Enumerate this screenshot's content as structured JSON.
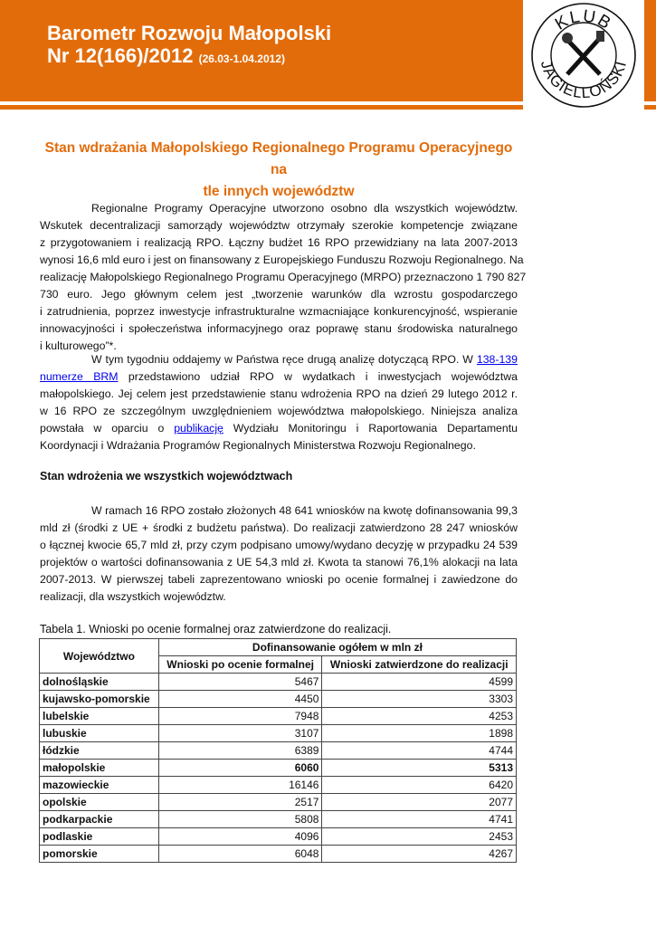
{
  "header": {
    "title_line1": "Barometr Rozwoju Małopolski",
    "title_line2": "Nr 12(166)/2012",
    "date_range": "(26.03-1.04.2012)",
    "logo_text": "KLUB JAGIELLOŃSKI",
    "brand_color": "#E36C0A"
  },
  "article": {
    "heading_line1": "Stan wdrażania Małopolskiego Regionalnego Programu Operacyjnego na",
    "heading_line2": "tle innych województw",
    "paragraphs": [
      [
        [
          {
            "t": "Regionalne Programy Operacyjne utworzono osobno dla wszystkich województw."
          }
        ],
        [
          {
            "t": "Wskutek decentralizacji samorządy województw otrzymały szerokie kompetencje związane"
          }
        ],
        [
          {
            "t": "z przygotowaniem i realizacją RPO. Łączny budżet 16 RPO przewidziany na lata 2007-2013"
          }
        ],
        [
          {
            "t": "wynosi 16,6 mld euro i jest on finansowany z Europejskiego Funduszu Rozwoju Regionalnego. Na"
          }
        ],
        [
          {
            "t": "realizację Małopolskiego Regionalnego Programu Operacyjnego (MRPO) przeznaczono 1 790 827"
          }
        ],
        [
          {
            "t": "730 euro. Jego głównym celem jest „tworzenie warunków dla wzrostu gospodarczego"
          }
        ],
        [
          {
            "t": "i zatrudnienia, poprzez inwestycje infrastrukturalne wzmacniające konkurencyjność, wspieranie"
          }
        ],
        [
          {
            "t": "innowacyjności i społeczeństwa informacyjnego oraz poprawę stanu środowiska naturalnego"
          }
        ],
        [
          {
            "t": "i kulturowego”*."
          }
        ]
      ],
      [
        [
          {
            "t": "W tym tygodniu oddajemy w Państwa ręce drugą analizę dotyczącą RPO. W "
          },
          {
            "t": "138-139",
            "link": true
          }
        ],
        [
          {
            "t": "numerze BRM",
            "link": true
          },
          {
            "t": " przedstawiono udział RPO w wydatkach i inwestycjach województwa"
          }
        ],
        [
          {
            "t": "małopolskiego. Jej celem jest przedstawienie stanu wdrożenia RPO na dzień 29 lutego 2012 r."
          }
        ],
        [
          {
            "t": "w 16 RPO ze szczególnym uwzględnieniem województwa małopolskiego. Niniejsza analiza"
          }
        ],
        [
          {
            "t": "powstała w oparciu o "
          },
          {
            "t": "publikację",
            "link": true
          },
          {
            "t": " Wydziału Monitoringu i Raportowania Departamentu"
          }
        ],
        [
          {
            "t": "Koordynacji i Wdrażania Programów Regionalnych Ministerstwa Rozwoju Regionalnego."
          }
        ]
      ],
      [
        [
          {
            "t": "W ramach 16 RPO zostało złożonych 48 641 wniosków na kwotę dofinansowania 99,3"
          }
        ],
        [
          {
            "t": "mld zł (środki z UE + środki z budżetu państwa). Do realizacji zatwierdzono 28 247 wniosków"
          }
        ],
        [
          {
            "t": "o łącznej kwocie 65,7 mld zł, przy czym podpisano umowy/wydano decyzję w przypadku 24 539"
          }
        ],
        [
          {
            "t": "projektów o wartości dofinansowania z UE 54,3 mld zł. Kwota ta stanowi 76,1% alokacji na lata"
          }
        ],
        [
          {
            "t": "2007-2013. W pierwszej tabeli zaprezentowano wnioski po ocenie formalnej i zawiedzone do"
          }
        ],
        [
          {
            "t": "realizacji, dla wszystkich województw."
          }
        ]
      ]
    ],
    "subheading": "Stan wdrożenia we wszystkich województwach",
    "table_caption": "Tabela 1. Wnioski po ocenie formalnej oraz zatwierdzone do realizacji."
  },
  "table": {
    "col_region": "Województwo",
    "col_group": "Dofinansowanie ogółem w mln zł",
    "col_formal": "Wnioski po ocenie formalnej",
    "col_approved": "Wnioski zatwierdzone do realizacji",
    "rows": [
      {
        "region": "dolnośląskie",
        "formal": "5467",
        "approved": "4599"
      },
      {
        "region": "kujawsko-pomorskie",
        "formal": "4450",
        "approved": "3303"
      },
      {
        "region": "lubelskie",
        "formal": "7948",
        "approved": "4253"
      },
      {
        "region": "lubuskie",
        "formal": "3107",
        "approved": "1898"
      },
      {
        "region": "łódzkie",
        "formal": "6389",
        "approved": "4744"
      },
      {
        "region": "małopolskie",
        "formal": "6060",
        "approved": "5313",
        "bold": true
      },
      {
        "region": "mazowieckie",
        "formal": "16146",
        "approved": "6420"
      },
      {
        "region": "opolskie",
        "formal": "2517",
        "approved": "2077"
      },
      {
        "region": "podkarpackie",
        "formal": "5808",
        "approved": "4741"
      },
      {
        "region": "podlaskie",
        "formal": "4096",
        "approved": "2453"
      },
      {
        "region": "pomorskie",
        "formal": "6048",
        "approved": "4267"
      }
    ]
  }
}
